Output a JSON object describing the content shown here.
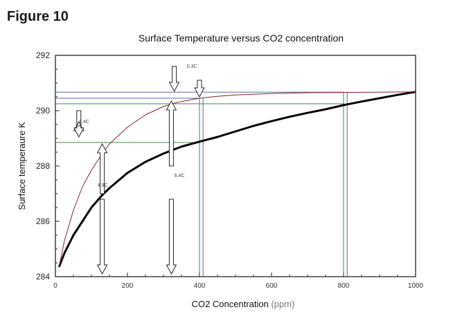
{
  "figure_label": "Figure 10",
  "chart_data": {
    "type": "line",
    "title": "Surface Temperature versus CO2 concentration",
    "xlabel": "CO2 Concentration",
    "xlabel_unit": "(ppm)",
    "ylabel": "Surface temperaure K",
    "xlim": [
      0,
      1000
    ],
    "ylim": [
      284,
      292
    ],
    "xticks": [
      "0",
      "200",
      "400",
      "600",
      "800",
      "1000"
    ],
    "yticks": [
      "284",
      "286",
      "288",
      "290",
      "292"
    ],
    "grid": false,
    "series": [
      {
        "style": "thick",
        "color": "#000000",
        "x": [
          10,
          25,
          50,
          75,
          100,
          130,
          150,
          200,
          250,
          300,
          330,
          350,
          400,
          450,
          500,
          550,
          600,
          650,
          700,
          750,
          800,
          850,
          900,
          950,
          1000
        ],
        "y": [
          284.35,
          284.85,
          285.5,
          286.0,
          286.5,
          286.95,
          287.2,
          287.75,
          288.15,
          288.45,
          288.6,
          288.7,
          288.88,
          289.05,
          289.25,
          289.45,
          289.62,
          289.78,
          289.92,
          290.05,
          290.2,
          290.33,
          290.45,
          290.57,
          290.68
        ]
      },
      {
        "style": "thin",
        "color": "#8b1a2b",
        "x": [
          10,
          25,
          50,
          75,
          100,
          130,
          150,
          175,
          200,
          250,
          300,
          330,
          350,
          400,
          450,
          500,
          600,
          700,
          800,
          900,
          1000
        ],
        "y": [
          284.35,
          285.3,
          286.4,
          287.25,
          287.85,
          288.45,
          288.8,
          289.1,
          289.4,
          289.85,
          290.15,
          290.27,
          290.33,
          290.45,
          290.52,
          290.57,
          290.62,
          290.65,
          290.66,
          290.67,
          290.68
        ]
      }
    ],
    "reference_lines": [
      {
        "orientation": "h",
        "y": 288.85,
        "x_from": 0,
        "x_to": 400,
        "color": "#3a8a4a"
      },
      {
        "orientation": "h",
        "y": 290.25,
        "x_from": 0,
        "x_to": 800,
        "color": "#3a8a4a"
      },
      {
        "orientation": "h",
        "y": 290.45,
        "x_from": 0,
        "x_to": 400,
        "color": "#5566aa"
      },
      {
        "orientation": "h",
        "y": 290.67,
        "x_from": 0,
        "x_to": 800,
        "color": "#5566aa"
      },
      {
        "orientation": "v",
        "x": 400,
        "y_from": 284,
        "y_to": 290.45,
        "color": "#3a8a4a"
      },
      {
        "orientation": "v",
        "x": 410,
        "y_from": 284,
        "y_to": 290.45,
        "color": "#5566aa"
      },
      {
        "orientation": "v",
        "x": 800,
        "y_from": 284,
        "y_to": 290.67,
        "color": "#3a8a4a"
      },
      {
        "orientation": "v",
        "x": 810,
        "y_from": 284,
        "y_to": 290.67,
        "color": "#5566aa"
      }
    ],
    "annotations": [
      {
        "text": "0.3C",
        "x": 365,
        "y": 291.55
      },
      {
        "text": "1.4C",
        "x": 65,
        "y": 289.55
      },
      {
        "text": "4.9C",
        "x": 117,
        "y": 287.25
      },
      {
        "text": "6.4C",
        "x": 330,
        "y": 287.6
      }
    ],
    "arrows": [
      {
        "x": 330,
        "y_from": 291.6,
        "y_to": 290.7,
        "dir": "down"
      },
      {
        "x": 400,
        "y_from": 291.1,
        "y_to": 290.5,
        "dir": "down"
      },
      {
        "x": 65,
        "y_from": 290.0,
        "y_to": 289.6,
        "dir": "up"
      },
      {
        "x": 65,
        "y_from": 289.45,
        "y_to": 289.05,
        "dir": "down"
      },
      {
        "x": 130,
        "y_from": 287.0,
        "y_to": 288.8,
        "dir": "up"
      },
      {
        "x": 130,
        "y_from": 286.8,
        "y_to": 284.1,
        "dir": "down"
      },
      {
        "x": 322,
        "y_from": 288.0,
        "y_to": 290.35,
        "dir": "up"
      },
      {
        "x": 322,
        "y_from": 286.8,
        "y_to": 284.1,
        "dir": "down"
      }
    ]
  }
}
